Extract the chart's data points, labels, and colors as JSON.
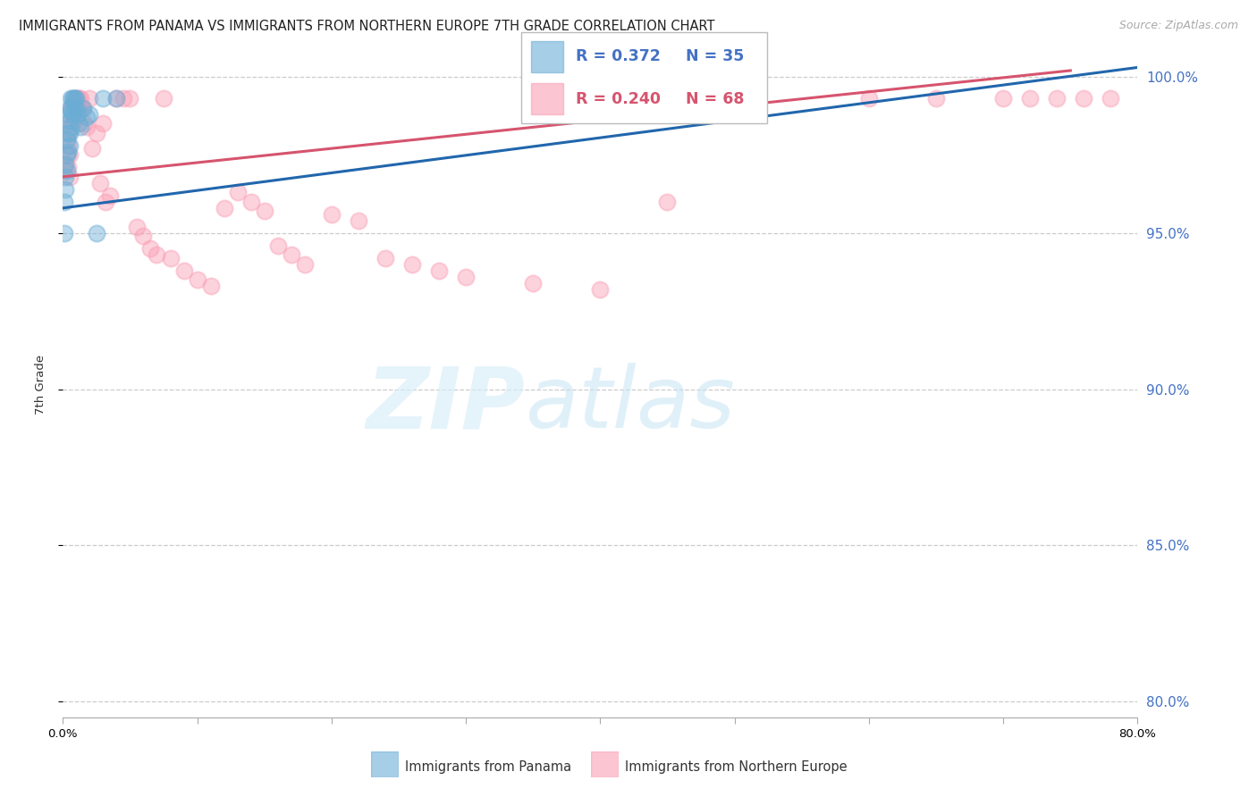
{
  "title": "IMMIGRANTS FROM PANAMA VS IMMIGRANTS FROM NORTHERN EUROPE 7TH GRADE CORRELATION CHART",
  "source": "Source: ZipAtlas.com",
  "legend_label_blue": "Immigrants from Panama",
  "legend_label_pink": "Immigrants from Northern Europe",
  "ylabel": "7th Grade",
  "x_min": 0.0,
  "x_max": 0.8,
  "y_min": 0.795,
  "y_max": 1.008,
  "yticks": [
    0.8,
    0.85,
    0.9,
    0.95,
    1.0
  ],
  "ytick_labels": [
    "80.0%",
    "85.0%",
    "90.0%",
    "95.0%",
    "100.0%"
  ],
  "xtick_vals": [
    0.0,
    0.1,
    0.2,
    0.3,
    0.4,
    0.5,
    0.6,
    0.7,
    0.8
  ],
  "xtick_labels": [
    "0.0%",
    "",
    "",
    "",
    "",
    "",
    "",
    "",
    "80.0%"
  ],
  "blue_color": "#6baed6",
  "pink_color": "#fa9fb5",
  "blue_line_color": "#2166ac",
  "pink_line_color": "#d6546e",
  "legend_R_blue": "R = 0.372",
  "legend_N_blue": "N = 35",
  "legend_R_pink": "R = 0.240",
  "legend_N_pink": "N = 68",
  "blue_x": [
    0.001,
    0.001,
    0.002,
    0.002,
    0.002,
    0.003,
    0.003,
    0.003,
    0.004,
    0.004,
    0.004,
    0.005,
    0.005,
    0.005,
    0.005,
    0.006,
    0.006,
    0.006,
    0.007,
    0.007,
    0.008,
    0.008,
    0.009,
    0.009,
    0.01,
    0.01,
    0.011,
    0.012,
    0.013,
    0.015,
    0.018,
    0.02,
    0.025,
    0.03,
    0.04
  ],
  "blue_y": [
    0.96,
    0.95,
    0.972,
    0.968,
    0.964,
    0.98,
    0.975,
    0.97,
    0.988,
    0.982,
    0.976,
    0.99,
    0.986,
    0.982,
    0.978,
    0.993,
    0.989,
    0.984,
    0.993,
    0.988,
    0.993,
    0.989,
    0.993,
    0.99,
    0.993,
    0.99,
    0.988,
    0.985,
    0.984,
    0.99,
    0.987,
    0.988,
    0.95,
    0.993,
    0.993
  ],
  "pink_x": [
    0.001,
    0.002,
    0.002,
    0.003,
    0.003,
    0.004,
    0.004,
    0.005,
    0.005,
    0.006,
    0.006,
    0.007,
    0.007,
    0.008,
    0.008,
    0.009,
    0.01,
    0.01,
    0.011,
    0.012,
    0.013,
    0.014,
    0.015,
    0.016,
    0.018,
    0.02,
    0.022,
    0.025,
    0.028,
    0.03,
    0.032,
    0.035,
    0.04,
    0.045,
    0.05,
    0.055,
    0.06,
    0.065,
    0.07,
    0.075,
    0.08,
    0.09,
    0.1,
    0.11,
    0.12,
    0.13,
    0.14,
    0.15,
    0.16,
    0.17,
    0.18,
    0.2,
    0.22,
    0.24,
    0.26,
    0.28,
    0.3,
    0.35,
    0.4,
    0.45,
    0.5,
    0.6,
    0.65,
    0.7,
    0.72,
    0.74,
    0.76,
    0.78
  ],
  "pink_y": [
    0.97,
    0.985,
    0.972,
    0.98,
    0.975,
    0.978,
    0.971,
    0.975,
    0.968,
    0.99,
    0.983,
    0.991,
    0.985,
    0.992,
    0.986,
    0.993,
    0.993,
    0.987,
    0.99,
    0.993,
    0.993,
    0.99,
    0.99,
    0.985,
    0.984,
    0.993,
    0.977,
    0.982,
    0.966,
    0.985,
    0.96,
    0.962,
    0.993,
    0.993,
    0.993,
    0.952,
    0.949,
    0.945,
    0.943,
    0.993,
    0.942,
    0.938,
    0.935,
    0.933,
    0.958,
    0.963,
    0.96,
    0.957,
    0.946,
    0.943,
    0.94,
    0.956,
    0.954,
    0.942,
    0.94,
    0.938,
    0.936,
    0.934,
    0.932,
    0.96,
    0.993,
    0.993,
    0.993,
    0.993,
    0.993,
    0.993,
    0.993,
    0.993
  ],
  "blue_trend_x": [
    0.0,
    0.8
  ],
  "blue_trend_y": [
    0.958,
    1.003
  ],
  "pink_trend_x": [
    0.0,
    0.75
  ],
  "pink_trend_y": [
    0.968,
    1.002
  ]
}
